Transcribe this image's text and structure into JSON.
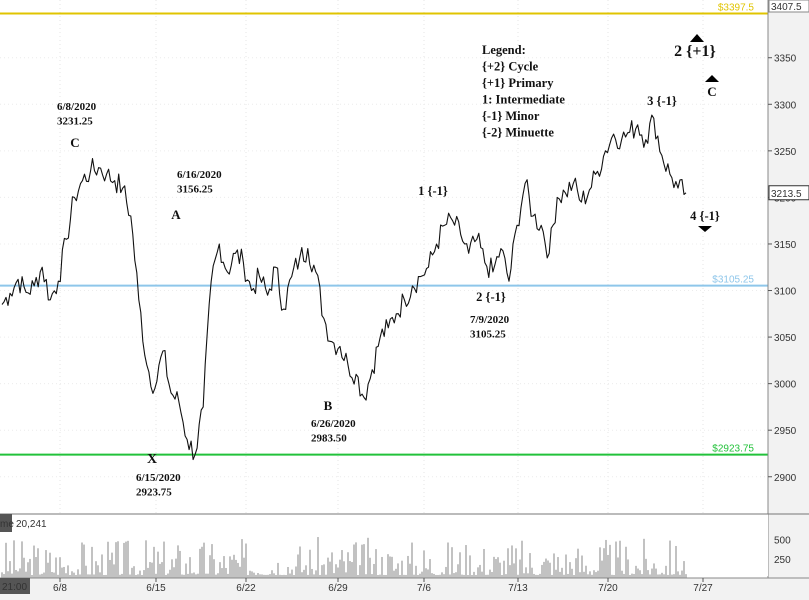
{
  "chart_data": {
    "type": "line",
    "y_axis": {
      "ylim": [
        2860,
        3412
      ],
      "ticks": [
        2900,
        2950,
        3000,
        3050,
        3100,
        3150,
        3200,
        3250,
        3300,
        3350
      ]
    },
    "x_axis": {
      "tick_labels": [
        "6/8",
        "6/15",
        "6/22",
        "6/29",
        "7/6",
        "7/13",
        "7/20",
        "7/27"
      ],
      "corner_label": "21:00"
    },
    "last_price_label": "3213.5",
    "top_tag_label": "3407.5",
    "levels": [
      {
        "value": 3397.5,
        "label": "$3397.5",
        "color": "#e0c400"
      },
      {
        "value": 3105.25,
        "label": "$3105.25",
        "color": "#8ec6ea"
      },
      {
        "value": 2923.75,
        "label": "$2923.75",
        "color": "#22c23a"
      }
    ],
    "series": [
      {
        "values": [
          3085,
          3097,
          3112,
          3098,
          3105,
          3125,
          3090,
          3110,
          3155,
          3200,
          3218,
          3228,
          3232,
          3225,
          3218,
          3210,
          3180,
          3090,
          3020,
          2995,
          3035,
          2990,
          2980,
          2940,
          2924,
          2975,
          3110,
          3150,
          3120,
          3140,
          3130,
          3100,
          3115,
          3095,
          3125,
          3080,
          3115,
          3135,
          3145,
          3120,
          3070,
          3045,
          3040,
          3020,
          3010,
          2985,
          3015,
          3050,
          3060,
          3075,
          3090,
          3105,
          3115,
          3125,
          3150,
          3170,
          3175,
          3160,
          3140,
          3155,
          3130,
          3120,
          3145,
          3110,
          3170,
          3215,
          3180,
          3170,
          3140,
          3200,
          3205,
          3215,
          3195,
          3208,
          3228,
          3250,
          3268,
          3262,
          3270,
          3278,
          3262,
          3285,
          3245,
          3225,
          3210,
          3205
        ]
      }
    ],
    "volume": {
      "label": "me",
      "value_label": "20,241",
      "ticks": [
        500,
        250
      ],
      "ylim": [
        0,
        600
      ]
    },
    "annotations": [
      {
        "lines": [
          "Legend:",
          "{+2} Cycle",
          "{+1} Primary",
          "1: Intermediate",
          "{-1} Minor",
          "{-2} Minuette"
        ]
      },
      {
        "lines": [
          "6/8/2020",
          "3231.25"
        ]
      },
      {
        "lines": [
          "C"
        ]
      },
      {
        "lines": [
          "6/16/2020",
          "3156.25"
        ]
      },
      {
        "lines": [
          "A"
        ]
      },
      {
        "lines": [
          "X"
        ]
      },
      {
        "lines": [
          "6/15/2020",
          "2923.75"
        ]
      },
      {
        "lines": [
          "B"
        ]
      },
      {
        "lines": [
          "6/26/2020",
          "2983.50"
        ]
      },
      {
        "lines": [
          "1 {-1}"
        ]
      },
      {
        "lines": [
          "2 {-1}"
        ]
      },
      {
        "lines": [
          "7/9/2020",
          "3105.25"
        ]
      },
      {
        "lines": [
          "3 {-1}"
        ]
      },
      {
        "lines": [
          "4 {-1}"
        ]
      },
      {
        "lines": [
          "2 {+1}"
        ]
      },
      {
        "lines": [
          "C"
        ]
      }
    ]
  }
}
